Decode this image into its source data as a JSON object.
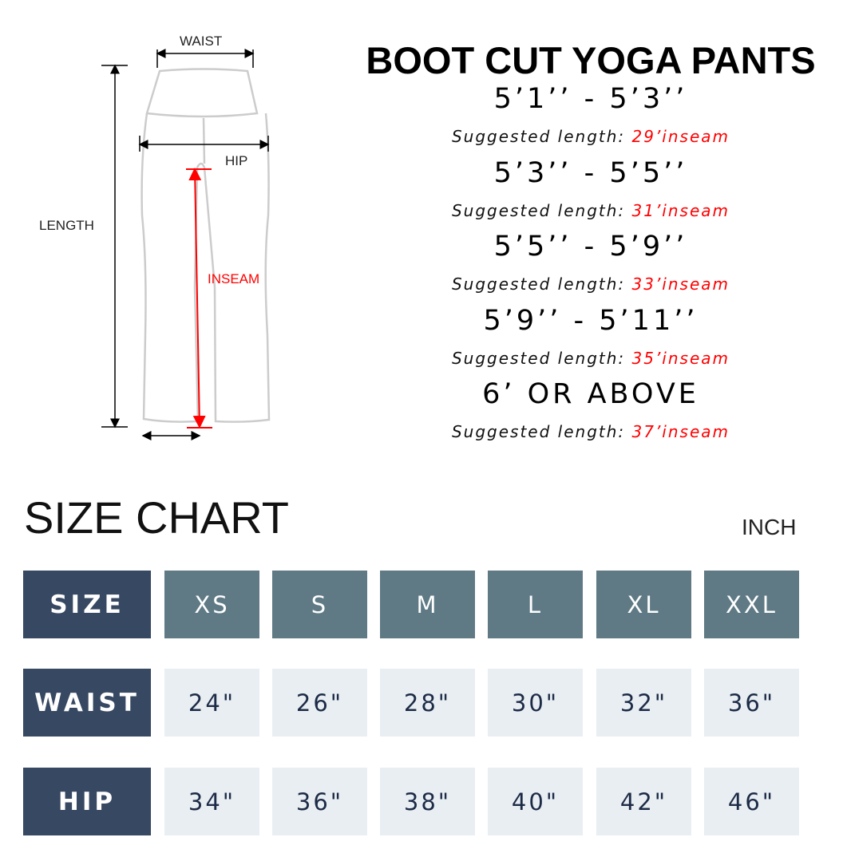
{
  "diagram": {
    "waist": "WAIST",
    "hip": "HIP",
    "length": "LENGTH",
    "inseam": "INSEAM"
  },
  "title": "BOOT CUT YOGA PANTS",
  "suggestions": [
    {
      "height": "5’1’’ - 5’3’’",
      "prefix": "Suggested length: ",
      "length": "29’inseam"
    },
    {
      "height": "5’3’’ - 5’5’’",
      "prefix": "Suggested length: ",
      "length": "31’inseam"
    },
    {
      "height": "5’5’’ - 5’9’’",
      "prefix": "Suggested length: ",
      "length": "33’inseam"
    },
    {
      "height": "5’9’’ - 5’11’’",
      "prefix": "Suggested length: ",
      "length": "35’inseam"
    },
    {
      "height": "6’ OR ABOVE",
      "prefix": "Suggested length: ",
      "length": "37’inseam"
    }
  ],
  "size_chart": {
    "title": "SIZE CHART",
    "unit": "INCH",
    "rows": [
      {
        "label": "SIZE",
        "values": [
          "XS",
          "S",
          "M",
          "L",
          "XL",
          "XXL"
        ]
      },
      {
        "label": "WAIST",
        "values": [
          "24\"",
          "26\"",
          "28\"",
          "30\"",
          "32\"",
          "36\""
        ]
      },
      {
        "label": "HIP",
        "values": [
          "34\"",
          "36\"",
          "38\"",
          "40\"",
          "42\"",
          "46\""
        ]
      }
    ]
  },
  "colors": {
    "header": "#374862",
    "size_cell": "#5f7a85",
    "value_cell": "#e9eef3",
    "accent": "#ff0000"
  }
}
